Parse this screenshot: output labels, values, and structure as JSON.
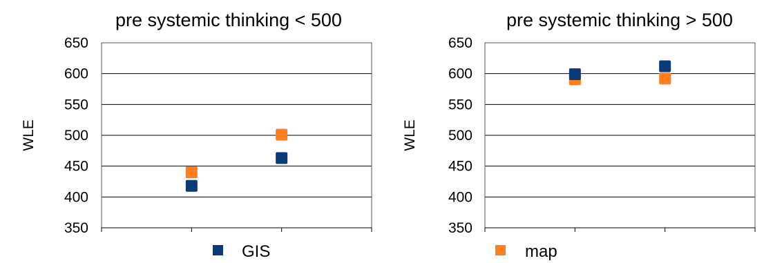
{
  "colors": {
    "GIS": "#0a3a78",
    "map": "#ff7f1e"
  },
  "chart_data": [
    {
      "type": "scatter",
      "title": "pre systemic thinking < 500",
      "xlabel": "",
      "ylabel": "WLE",
      "ylim": [
        350,
        650
      ],
      "yticks": [
        350,
        400,
        450,
        500,
        550,
        600,
        650
      ],
      "x_categories": 3,
      "grid": true,
      "series": [
        {
          "name": "GIS",
          "points": [
            {
              "x": 1,
              "y": 418
            },
            {
              "x": 2,
              "y": 463
            }
          ]
        },
        {
          "name": "map",
          "points": [
            {
              "x": 1,
              "y": 440
            },
            {
              "x": 2,
              "y": 501
            }
          ]
        }
      ]
    },
    {
      "type": "scatter",
      "title": "pre systemic thinking > 500",
      "xlabel": "",
      "ylabel": "WLE",
      "ylim": [
        350,
        650
      ],
      "yticks": [
        350,
        400,
        450,
        500,
        550,
        600,
        650
      ],
      "x_categories": 3,
      "grid": true,
      "series": [
        {
          "name": "map",
          "points": [
            {
              "x": 1,
              "y": 591
            },
            {
              "x": 2,
              "y": 592
            }
          ]
        },
        {
          "name": "GIS",
          "points": [
            {
              "x": 1,
              "y": 599
            },
            {
              "x": 2,
              "y": 612
            }
          ]
        }
      ]
    }
  ],
  "legend": [
    {
      "label": "GIS",
      "series": "GIS"
    },
    {
      "label": "map",
      "series": "map"
    }
  ]
}
